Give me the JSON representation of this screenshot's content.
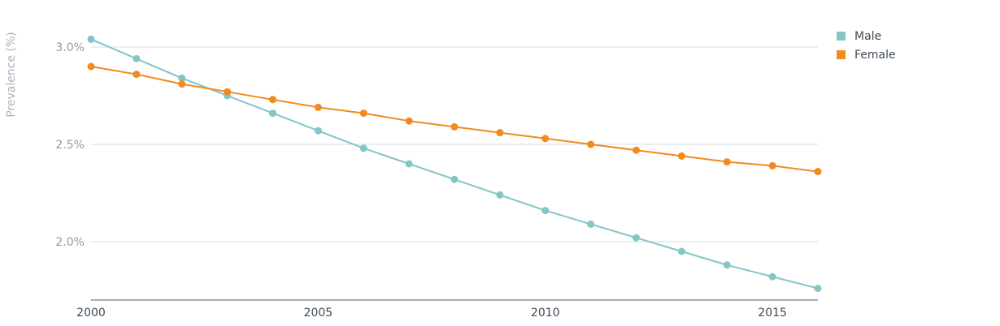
{
  "chart_data": {
    "type": "line",
    "title": "",
    "xlabel": "",
    "ylabel": "Prevalence (%)",
    "x": [
      2000,
      2001,
      2002,
      2003,
      2004,
      2005,
      2006,
      2007,
      2008,
      2009,
      2010,
      2011,
      2012,
      2013,
      2014,
      2015,
      2016
    ],
    "x_ticks": [
      "2000",
      "2005",
      "2010",
      "2015"
    ],
    "y_ticks": [
      "2.0%",
      "2.5%",
      "3.0%"
    ],
    "xlim": [
      2000,
      2016
    ],
    "ylim": [
      1.7,
      3.05
    ],
    "grid": "horizontal",
    "legend_position": "top-right",
    "series": [
      {
        "name": "Male",
        "color": "#84c5c6",
        "values": [
          3.04,
          2.94,
          2.84,
          2.75,
          2.66,
          2.57,
          2.48,
          2.4,
          2.32,
          2.24,
          2.16,
          2.09,
          2.02,
          1.95,
          1.88,
          1.82,
          1.76
        ]
      },
      {
        "name": "Female",
        "color": "#f28a1f",
        "values": [
          2.9,
          2.86,
          2.81,
          2.77,
          2.73,
          2.69,
          2.66,
          2.62,
          2.59,
          2.56,
          2.53,
          2.5,
          2.47,
          2.44,
          2.41,
          2.39,
          2.36
        ]
      }
    ]
  }
}
